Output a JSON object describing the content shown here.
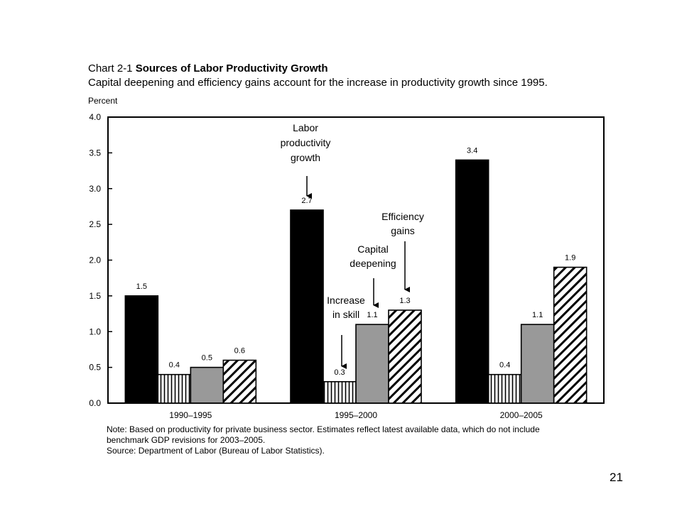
{
  "header": {
    "chart_number": "Chart 2-1",
    "title": "Sources of Labor Productivity Growth",
    "subtitle": "Capital deepening and efficiency gains account for the increase in productivity growth since 1995."
  },
  "chart_data": {
    "type": "bar",
    "title": "Sources of Labor Productivity Growth",
    "ylabel": "Percent",
    "xlabel": "",
    "ylim": [
      0,
      4.0
    ],
    "yticks": [
      "0.0",
      "0.5",
      "1.0",
      "1.5",
      "2.0",
      "2.5",
      "3.0",
      "3.5",
      "4.0"
    ],
    "categories": [
      "1990–1995",
      "1995–2000",
      "2000–2005"
    ],
    "series": [
      {
        "name": "Labor productivity growth",
        "values": [
          1.5,
          2.7,
          3.4
        ],
        "labels": [
          "1.5",
          "2.7",
          "3.4"
        ],
        "color": "#000000",
        "pattern": "solid"
      },
      {
        "name": "Increase in skill",
        "values": [
          0.4,
          0.3,
          0.4
        ],
        "labels": [
          "0.4",
          "0.3",
          "0.4"
        ],
        "color": "#ffffff",
        "pattern": "vertical-lines"
      },
      {
        "name": "Capital deepening",
        "values": [
          0.5,
          1.1,
          1.1
        ],
        "labels": [
          "0.5",
          "1.1",
          "1.1"
        ],
        "color": "#999999",
        "pattern": "solid"
      },
      {
        "name": "Efficiency gains",
        "values": [
          0.6,
          1.3,
          1.9
        ],
        "labels": [
          "0.6",
          "1.3",
          "1.9"
        ],
        "color": "#ffffff",
        "pattern": "diagonal-hatch"
      }
    ],
    "grid": false,
    "legend": "callouts"
  },
  "annotations": [
    {
      "lines": [
        "Labor",
        "productivity",
        "growth"
      ],
      "series_index": 0,
      "category_index": 1
    },
    {
      "lines": [
        "Increase",
        "in skill"
      ],
      "series_index": 1,
      "category_index": 1
    },
    {
      "lines": [
        "Capital",
        "deepening"
      ],
      "series_index": 2,
      "category_index": 1
    },
    {
      "lines": [
        "Efficiency",
        "gains"
      ],
      "series_index": 3,
      "category_index": 1
    }
  ],
  "notes": {
    "note_line1": "Note:  Based on productivity for private business sector.  Estimates reflect latest available data, which do not include",
    "note_line2": "benchmark GDP revisions for 2003–2005.",
    "source": "Source:  Department of Labor (Bureau of Labor Statistics)."
  },
  "page_number": "21"
}
